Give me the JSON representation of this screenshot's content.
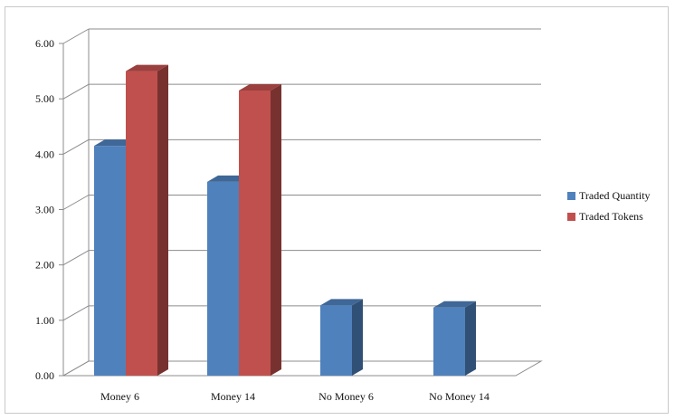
{
  "chart_data": {
    "type": "bar",
    "style": "3d-clustered-column",
    "categories": [
      "Money 6",
      "Money 14",
      "No Money 6",
      "No Money 14"
    ],
    "series": [
      {
        "name": "Traded Quantity",
        "color": "#4F81BD",
        "values": [
          4.15,
          3.5,
          1.27,
          1.23
        ]
      },
      {
        "name": "Traded Tokens",
        "color": "#C0504D",
        "values": [
          5.5,
          5.15,
          null,
          null
        ]
      }
    ],
    "ylim": [
      0,
      6
    ],
    "yticks": [
      "0.00",
      "1.00",
      "2.00",
      "3.00",
      "4.00",
      "5.00",
      "6.00"
    ],
    "grid": true,
    "legend_position": "right",
    "title": "",
    "xlabel": "",
    "ylabel": ""
  }
}
